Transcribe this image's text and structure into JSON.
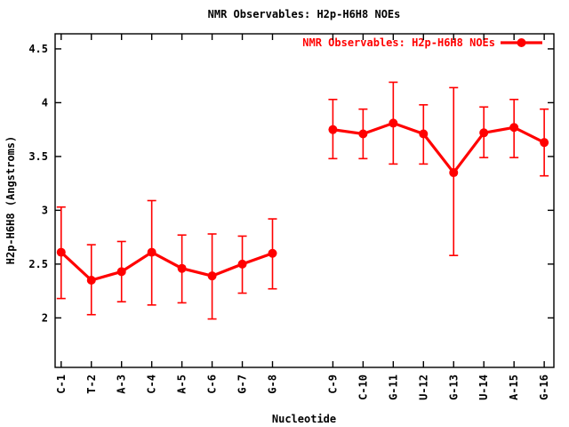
{
  "window": {
    "background": "#ffffff"
  },
  "chart_data": {
    "type": "line",
    "subtype": "points-with-asymmetric-error-bars",
    "title": "NMR Observables: H2p-H6H8 NOEs",
    "xlabel": "Nucleotide",
    "ylabel": "H2p-H6H8 (Angstroms)",
    "legend_label": "NMR Observables: H2p-H6H8 NOEs",
    "legend_position": "top-right-inside",
    "series_color": "#ff0000",
    "text_color": "#000000",
    "grid": false,
    "categories": [
      "C-1",
      "T-2",
      "A-3",
      "C-4",
      "A-5",
      "C-6",
      "G-7",
      "G-8",
      "C-9",
      "C-10",
      "G-11",
      "U-12",
      "G-13",
      "U-14",
      "A-15",
      "G-16"
    ],
    "x_positions": [
      1,
      2,
      3,
      4,
      5,
      6,
      7,
      8,
      10,
      11,
      12,
      13,
      14,
      15,
      16,
      17
    ],
    "values": [
      2.61,
      2.35,
      2.43,
      2.61,
      2.46,
      2.39,
      2.5,
      2.6,
      3.75,
      3.71,
      3.81,
      3.71,
      3.35,
      3.72,
      3.77,
      3.63
    ],
    "error_low": [
      2.18,
      2.03,
      2.15,
      2.12,
      2.14,
      1.99,
      2.23,
      2.27,
      3.48,
      3.48,
      3.43,
      3.43,
      2.58,
      3.49,
      3.49,
      3.32
    ],
    "error_high": [
      3.03,
      2.68,
      2.71,
      3.09,
      2.77,
      2.78,
      2.76,
      2.92,
      4.03,
      3.94,
      4.19,
      3.98,
      4.14,
      3.96,
      4.03,
      3.94
    ],
    "line_break_after_category": "G-8",
    "yticks": [
      2,
      2.5,
      3,
      3.5,
      4,
      4.5
    ],
    "ytick_labels": [
      "2",
      "2.5",
      "3",
      "3.5",
      "4",
      "4.5"
    ],
    "xlim": [
      0.8,
      17.32
    ],
    "ylim": [
      1.54,
      4.64
    ]
  }
}
